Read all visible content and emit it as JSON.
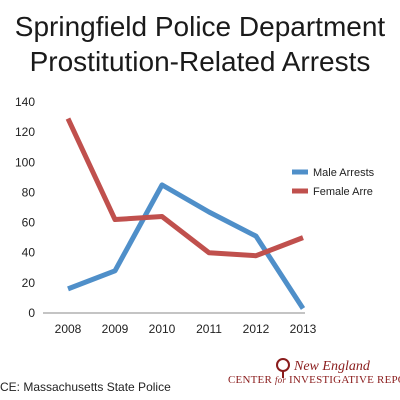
{
  "header": {
    "title_line_1": "Springfield Police Department",
    "title_line_2": "Prostitution-Related Arrests"
  },
  "footer": {
    "source": "CE: Massachusetts State Police",
    "logo_line_1": "New England",
    "logo_line_2_main": "CENTER",
    "logo_line_2_small": "for",
    "logo_line_2_end": "INVESTIGATIVE REPO"
  },
  "chart_data": {
    "type": "line",
    "categories": [
      "2008",
      "2009",
      "2010",
      "2011",
      "2012",
      "2013"
    ],
    "series": [
      {
        "name": "Male Arrests",
        "values": [
          16,
          28,
          85,
          67,
          51,
          3
        ],
        "color": "#4f8fc9"
      },
      {
        "name": "Female Arrests",
        "values": [
          129,
          62,
          64,
          40,
          38,
          50
        ],
        "color": "#c0504d"
      }
    ],
    "legend_labels": [
      "Male Arrests",
      "Female Arre"
    ],
    "ylim": [
      0,
      140
    ],
    "yticks": [
      0,
      20,
      40,
      60,
      80,
      100,
      120,
      140
    ],
    "grid": false,
    "legend_position": "right"
  }
}
